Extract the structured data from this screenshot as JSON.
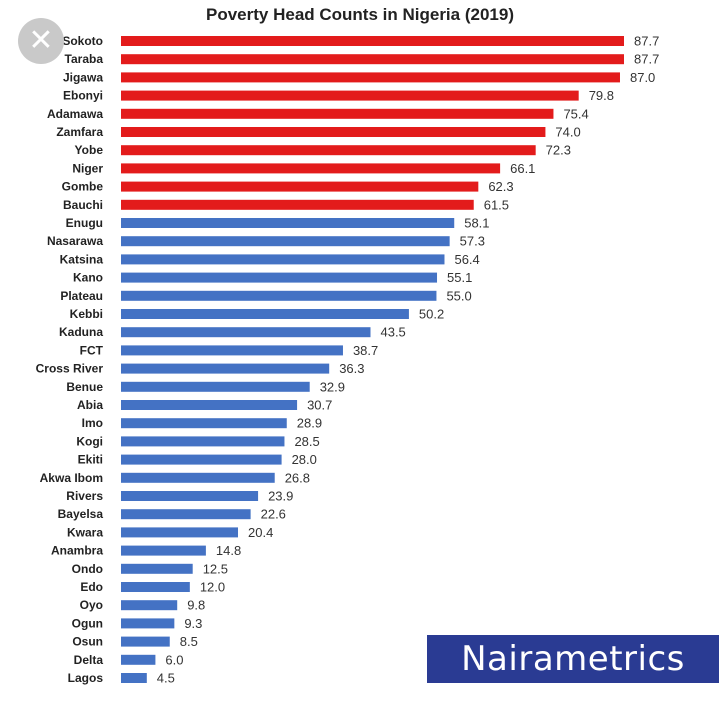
{
  "chart_data": {
    "type": "bar",
    "orientation": "horizontal",
    "title": "Poverty Head Counts in Nigeria (2019)",
    "categories": [
      "Sokoto",
      "Taraba",
      "Jigawa",
      "Ebonyi",
      "Adamawa",
      "Zamfara",
      "Yobe",
      "Niger",
      "Gombe",
      "Bauchi",
      "Enugu",
      "Nasarawa",
      "Katsina",
      "Kano",
      "Plateau",
      "Kebbi",
      "Kaduna",
      "FCT",
      "Cross River",
      "Benue",
      "Abia",
      "Imo",
      "Kogi",
      "Ekiti",
      "Akwa Ibom",
      "Rivers",
      "Bayelsa",
      "Kwara",
      "Anambra",
      "Ondo",
      "Edo",
      "Oyo",
      "Ogun",
      "Osun",
      "Delta",
      "Lagos"
    ],
    "values": [
      87.7,
      87.7,
      87.0,
      79.8,
      75.4,
      74.0,
      72.3,
      66.1,
      62.3,
      61.5,
      58.1,
      57.3,
      56.4,
      55.1,
      55.0,
      50.2,
      43.5,
      38.7,
      36.3,
      32.9,
      30.7,
      28.9,
      28.5,
      28.0,
      26.8,
      23.9,
      22.6,
      20.4,
      14.8,
      12.5,
      12.0,
      9.8,
      9.3,
      8.5,
      6.0,
      4.5
    ],
    "value_labels": [
      "87.7",
      "87.7",
      "87.0",
      "79.8",
      "75.4",
      "74.0",
      "72.3",
      "66.1",
      "62.3",
      "61.5",
      "58.1",
      "57.3",
      "56.4",
      "55.1",
      "55.0",
      "50.2",
      "43.5",
      "38.7",
      "36.3",
      "32.9",
      "30.7",
      "28.9",
      "28.5",
      "28.0",
      "26.8",
      "23.9",
      "22.6",
      "20.4",
      "14.8",
      "12.5",
      "12.0",
      "9.8",
      "9.3",
      "8.5",
      "6.0",
      "4.5"
    ],
    "highlight_count": 10,
    "colors": {
      "highlight": "#e31b1b",
      "base": "#4472c4"
    },
    "xlabel": "",
    "ylabel": "",
    "xlim": [
      0,
      87.7
    ],
    "grid": false
  },
  "watermark": {
    "text": "Nairametrics",
    "background": "#2a3b93"
  },
  "close_button": {
    "glyph": "✕",
    "icon": "close-icon"
  }
}
